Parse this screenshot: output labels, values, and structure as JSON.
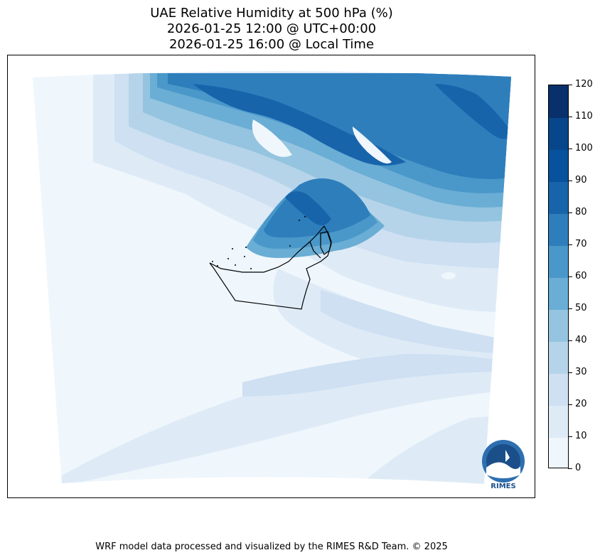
{
  "title": {
    "line1": "UAE Relative Humidity at 500 hPa (%)",
    "line2": "2026-01-25 12:00 @ UTC+00:00",
    "line3": "2026-01-25 16:00 @ Local Time"
  },
  "colorbar": {
    "levels": [
      0,
      10,
      20,
      30,
      40,
      50,
      60,
      70,
      80,
      90,
      100,
      110,
      120
    ],
    "tick_labels": [
      "0",
      "10",
      "20",
      "30",
      "40",
      "50",
      "60",
      "70",
      "80",
      "90",
      "100",
      "110",
      "120"
    ],
    "colors": [
      "#eff6fc",
      "#deebf7",
      "#cee0f2",
      "#b5d4e9",
      "#94c4df",
      "#6aadd5",
      "#4a98c9",
      "#2e7ebc",
      "#1764ab",
      "#08519c",
      "#08468b",
      "#08306b"
    ]
  },
  "logo": {
    "text": "RIMES"
  },
  "footer": "WRF model data processed and visualized by the RIMES R&D Team. © 2025"
}
